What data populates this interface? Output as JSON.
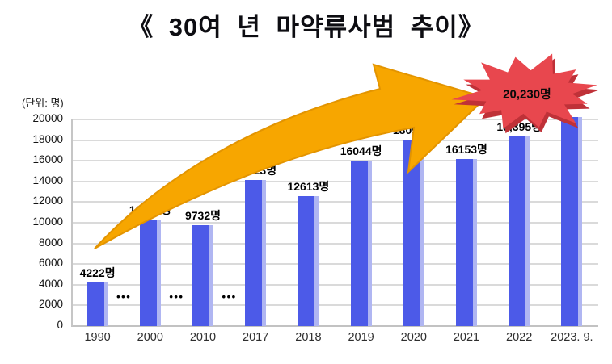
{
  "title": "《 30여 년 마약류사범 추이》",
  "unit_label": "(단위: 명)",
  "colors": {
    "bar": "#4c5ae8",
    "bar_edge": "#b0b6f2",
    "arrow": "#f7a600",
    "arrow_stroke": "#e39400",
    "burst": "#e8474e",
    "burst_shadow": "#bf3138",
    "grid": "#dadada",
    "axis": "#c6c6c6"
  },
  "chart_data": {
    "type": "bar",
    "title": "《 30여 년 마약류사범 추이》",
    "unit": "(단위: 명)",
    "categories": [
      "1990",
      "2000",
      "2010",
      "2017",
      "2018",
      "2019",
      "2020",
      "2021",
      "2022",
      "2023. 9."
    ],
    "values": [
      4222,
      10304,
      9732,
      14123,
      12613,
      16044,
      18050,
      16153,
      18395,
      20230
    ],
    "bar_labels": [
      "4222명",
      "10304명",
      "9732명",
      "14123명",
      "12613명",
      "16044명",
      "18050명",
      "16153명",
      "18,395명",
      ""
    ],
    "highlight_label": "20,230명",
    "ylabel_ticks": [
      0,
      2000,
      4000,
      6000,
      8000,
      10000,
      12000,
      14000,
      16000,
      18000,
      20000
    ],
    "ylim": [
      0,
      20000
    ],
    "grid": true,
    "legend": "none",
    "axis_break_marker": "•••",
    "axis_break_positions": [
      0,
      1,
      2
    ],
    "annotations": [
      "golden upward trend arrow",
      "red starburst highlighting 2023 value"
    ]
  }
}
